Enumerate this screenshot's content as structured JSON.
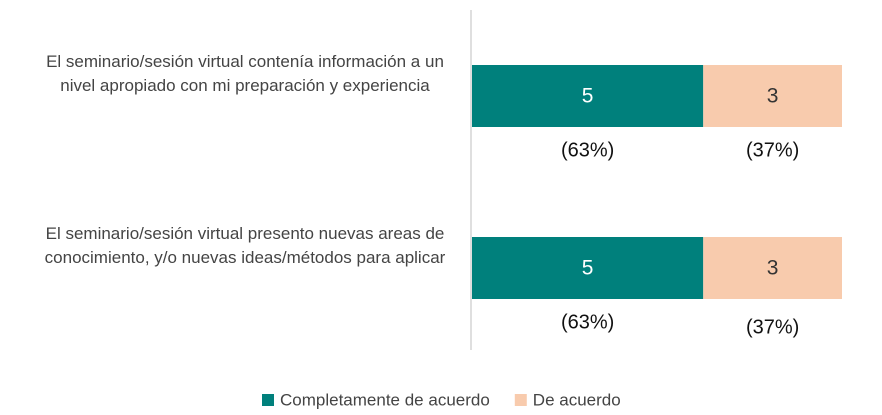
{
  "chart_data": {
    "type": "stacked-barh",
    "categories": [
      "El seminario/sesión virtual contenía información a un nivel apropiado con mi preparación y experiencia",
      "El seminario/sesión virtual presento nuevas areas de conocimiento, y/o nuevas ideas/métodos para aplicar"
    ],
    "series": [
      {
        "name": "Completamente de acuerdo",
        "color": "#00807c",
        "values": [
          5,
          5
        ],
        "percent_labels": [
          "(63%)",
          "(63%)"
        ]
      },
      {
        "name": "De acuerdo",
        "color": "#f8cbad",
        "values": [
          3,
          3
        ],
        "percent_labels": [
          "(37%)",
          "(37%)"
        ]
      }
    ],
    "legend": "bottom"
  }
}
